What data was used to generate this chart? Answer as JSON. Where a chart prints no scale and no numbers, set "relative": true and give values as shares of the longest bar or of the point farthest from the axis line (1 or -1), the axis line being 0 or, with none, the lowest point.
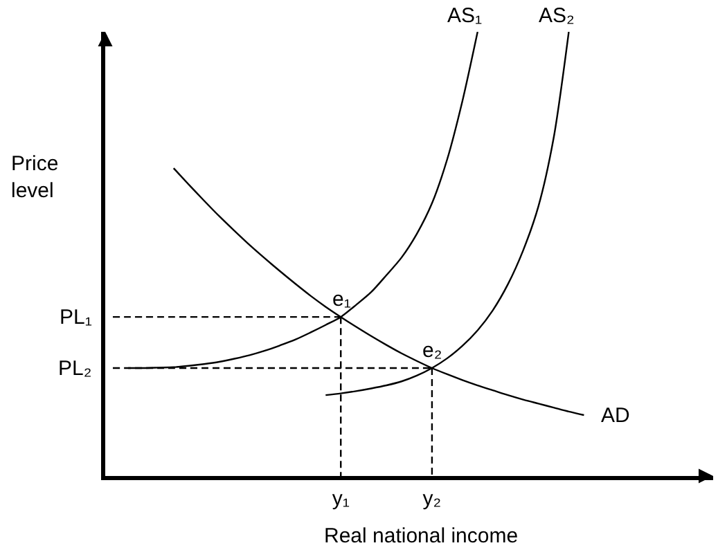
{
  "chart_data": {
    "type": "line",
    "relative": true,
    "xlabel": "Real national income",
    "ylabel": "Price level",
    "categories": [
      null,
      null,
      null,
      null,
      null,
      null,
      null,
      null,
      null,
      null,
      null,
      null,
      null,
      null,
      null,
      "y₁",
      null,
      null,
      null,
      null,
      null,
      "y₂",
      null,
      null,
      null,
      null,
      null,
      null,
      null,
      null,
      null,
      null,
      null,
      null,
      null,
      null,
      null,
      null,
      null,
      null
    ],
    "annotations": [
      {
        "text": "e₁",
        "x": "y₁",
        "y": 0.358
      },
      {
        "text": "e₂",
        "x": "y₂",
        "y": 0.243
      }
    ],
    "series": [
      {
        "name": "AS₁",
        "color": "#000000",
        "values": [
          null,
          0.243,
          0.243,
          0.244,
          0.245,
          0.248,
          0.252,
          0.257,
          0.264,
          0.272,
          0.282,
          0.294,
          0.307,
          0.323,
          0.34,
          0.358,
          0.385,
          0.414,
          0.452,
          0.492,
          0.545,
          0.614,
          0.713,
          0.844,
          1,
          null,
          null,
          null,
          null,
          null,
          null,
          null,
          null,
          null,
          null,
          null,
          null,
          null,
          null,
          null
        ]
      },
      {
        "name": "AS₂",
        "color": "#000000",
        "values": [
          null,
          null,
          null,
          null,
          null,
          null,
          null,
          null,
          null,
          null,
          null,
          null,
          null,
          null,
          0.182,
          0.186,
          0.191,
          0.197,
          0.204,
          0.213,
          0.226,
          0.243,
          0.265,
          0.293,
          0.328,
          0.373,
          0.432,
          0.508,
          0.607,
          0.76,
          1,
          null,
          null,
          null,
          null,
          null,
          null,
          null,
          null,
          null
        ]
      },
      {
        "name": "AD",
        "color": "#000000",
        "values": [
          null,
          null,
          null,
          null,
          0.693,
          0.656,
          0.62,
          0.585,
          0.552,
          0.52,
          0.49,
          0.461,
          0.433,
          0.406,
          0.381,
          0.358,
          0.336,
          0.315,
          0.295,
          0.276,
          0.259,
          0.243,
          0.229,
          0.216,
          0.204,
          0.193,
          0.182,
          0.172,
          0.163,
          0.154,
          0.145,
          0.137,
          null,
          null,
          null,
          null,
          null,
          null,
          null,
          null
        ]
      },
      {
        "name": "PL₁",
        "color": "#000000",
        "line_style": "dashed",
        "values": [
          0.358,
          0.358,
          0.358,
          0.358,
          0.358,
          0.358,
          0.358,
          0.358,
          0.358,
          0.358,
          0.358,
          0.358,
          0.358,
          0.358,
          0.358,
          0.358,
          null,
          null,
          null,
          null,
          null,
          null,
          null,
          null,
          null,
          null,
          null,
          null,
          null,
          null,
          null,
          null,
          null,
          null,
          null,
          null,
          null,
          null,
          null,
          null
        ]
      },
      {
        "name": "PL₂",
        "color": "#000000",
        "line_style": "dashed",
        "values": [
          0.243,
          0.243,
          0.243,
          0.243,
          0.243,
          0.243,
          0.243,
          0.243,
          0.243,
          0.243,
          0.243,
          0.243,
          0.243,
          0.243,
          0.243,
          0.243,
          0.243,
          0.243,
          0.243,
          0.243,
          0.243,
          0.243,
          null,
          null,
          null,
          null,
          null,
          null,
          null,
          null,
          null,
          null,
          null,
          null,
          null,
          null,
          null,
          null,
          null,
          null
        ]
      },
      {
        "color": "#000000",
        "line_style": "dashed",
        "x": [
          "y₁",
          "y₁"
        ],
        "values": [
          0.358,
          0
        ]
      },
      {
        "color": "#000000",
        "line_style": "dashed",
        "x": [
          "y₂",
          "y₂"
        ],
        "values": [
          0.243,
          0
        ]
      }
    ]
  }
}
